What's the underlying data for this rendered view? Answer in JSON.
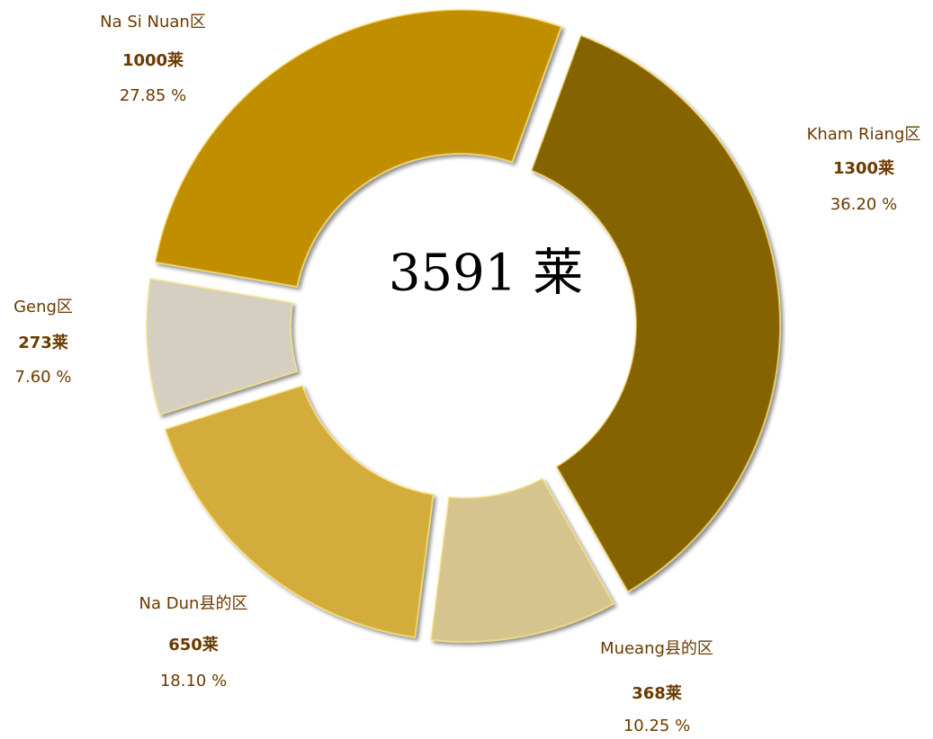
{
  "chart_data": {
    "type": "donut",
    "categories": [
      "Kham Riang区",
      "Mueang县的区",
      "Na Dun县的区",
      "Geng区",
      "Na Si Nuan区"
    ],
    "values": [
      1300,
      368,
      650,
      273,
      1000
    ],
    "value_labels": [
      "1300莱",
      "368莱",
      "650莱",
      "273莱",
      "1000莱"
    ],
    "percent_labels": [
      "36.20 %",
      "10.25 %",
      "18.10 %",
      "7.60 %",
      "27.85 %"
    ],
    "colors": [
      "#856300",
      "#d5c48e",
      "#d4ac3a",
      "#d4cfc0",
      "#c18e00"
    ],
    "center_label": "3591 莱"
  }
}
